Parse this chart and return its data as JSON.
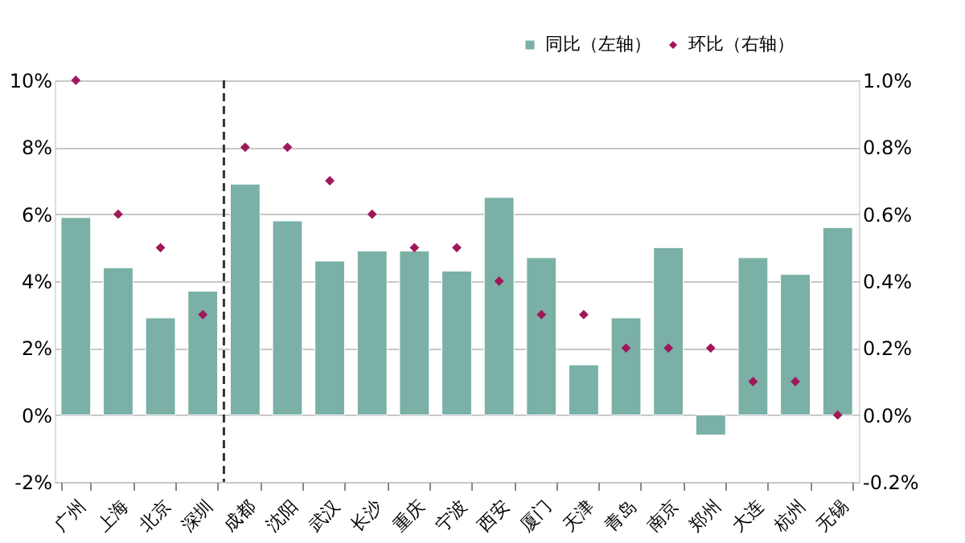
{
  "chart_data": {
    "type": "bar",
    "categories": [
      "广州",
      "上海",
      "北京",
      "深圳",
      "成都",
      "沈阳",
      "武汉",
      "长沙",
      "重庆",
      "宁波",
      "西安",
      "厦门",
      "天津",
      "青岛",
      "南京",
      "郑州",
      "大连",
      "杭州",
      "无锡"
    ],
    "series": [
      {
        "name": "同比（左轴）",
        "color": "#7ab0a6",
        "values": [
          5.9,
          4.4,
          2.9,
          3.7,
          6.9,
          5.8,
          4.6,
          4.9,
          4.9,
          4.3,
          6.5,
          4.7,
          1.5,
          2.9,
          5.0,
          -0.6,
          4.7,
          4.2,
          5.6
        ]
      },
      {
        "name": "环比（右轴）",
        "type": "scatter",
        "axis": "y2",
        "marker": "diamond",
        "color": "#a0185a",
        "values": [
          1.0,
          0.6,
          0.5,
          0.3,
          0.8,
          0.8,
          0.7,
          0.6,
          0.5,
          0.5,
          0.4,
          0.3,
          0.3,
          0.2,
          0.2,
          0.2,
          0.1,
          0.1,
          0.0
        ]
      }
    ],
    "ylim": [
      -2,
      10
    ],
    "yticks": [
      {
        "value": -2,
        "label": "-2%"
      },
      {
        "value": 0,
        "label": "0%"
      },
      {
        "value": 2,
        "label": "2%"
      },
      {
        "value": 4,
        "label": "4%"
      },
      {
        "value": 6,
        "label": "6%"
      },
      {
        "value": 8,
        "label": "8%"
      },
      {
        "value": 10,
        "label": "10%"
      }
    ],
    "y2lim": [
      -0.2,
      1.0
    ],
    "y2ticks": [
      {
        "value": -0.2,
        "label": "-0.2%"
      },
      {
        "value": 0,
        "label": "0.0%"
      },
      {
        "value": 0.2,
        "label": "0.2%"
      },
      {
        "value": 0.4,
        "label": "0.4%"
      },
      {
        "value": 0.6,
        "label": "0.6%"
      },
      {
        "value": 0.8,
        "label": "0.8%"
      },
      {
        "value": 1.0,
        "label": "1.0%"
      }
    ],
    "ref_lines": [
      {
        "axis": "x",
        "value": "成都",
        "color": "#333333",
        "line_style": "dashed"
      }
    ],
    "grid": "y",
    "legend": "top right"
  }
}
